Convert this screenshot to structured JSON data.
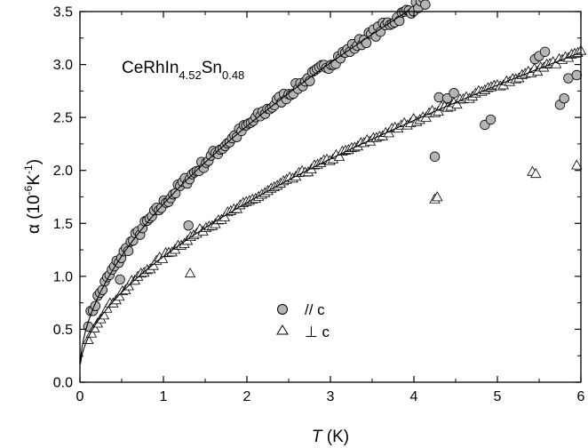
{
  "chart_data": {
    "type": "scatter",
    "annotation": {
      "base": "CeRhIn",
      "sub1": "4.52",
      "mid": "Sn",
      "sub2": "0.48"
    },
    "xlabel": {
      "italic": "T",
      "rest": " (K)"
    },
    "ylabel": {
      "main": "α (10",
      "sup1": "-6",
      "mid": "K",
      "sup2": "-1",
      "end": ")"
    },
    "xlim": [
      0,
      6
    ],
    "ylim": [
      0,
      3.5
    ],
    "xticks": [
      "0",
      "1",
      "2",
      "3",
      "4",
      "5",
      "6"
    ],
    "yticks": [
      "0.0",
      "0.5",
      "1.0",
      "1.5",
      "2.0",
      "2.5",
      "3.0",
      "3.5"
    ],
    "legend_position": "center-right",
    "series": [
      {
        "name": "// c",
        "marker": "circle",
        "color": "#b4b4b4",
        "fit": {
          "a": 1.7,
          "c": 0.3,
          "b": 0.1,
          "power": 0.5
        },
        "extra_points": [
          [
            4.25,
            2.13
          ],
          [
            4.3,
            2.69
          ],
          [
            4.4,
            2.68
          ],
          [
            4.48,
            2.73
          ],
          [
            5.45,
            3.05
          ],
          [
            5.5,
            3.08
          ],
          [
            5.57,
            3.12
          ],
          [
            5.85,
            2.87
          ],
          [
            5.95,
            2.9
          ],
          [
            5.75,
            2.62
          ],
          [
            5.8,
            2.68
          ],
          [
            4.85,
            2.43
          ],
          [
            4.92,
            2.48
          ],
          [
            1.3,
            1.48
          ],
          [
            0.48,
            0.97
          ]
        ],
        "n_points": 210
      },
      {
        "name": "⊥ c",
        "marker": "triangle",
        "color": "#ffffff",
        "fit": {
          "a": 1.04,
          "c": 0.25,
          "b": 0.1,
          "power": 0.5
        },
        "extra_points": [
          [
            1.32,
            1.03
          ],
          [
            4.25,
            1.73
          ],
          [
            4.28,
            1.75
          ],
          [
            5.42,
            1.99
          ],
          [
            5.46,
            1.97
          ],
          [
            5.95,
            2.05
          ]
        ],
        "n_points": 160
      }
    ]
  }
}
